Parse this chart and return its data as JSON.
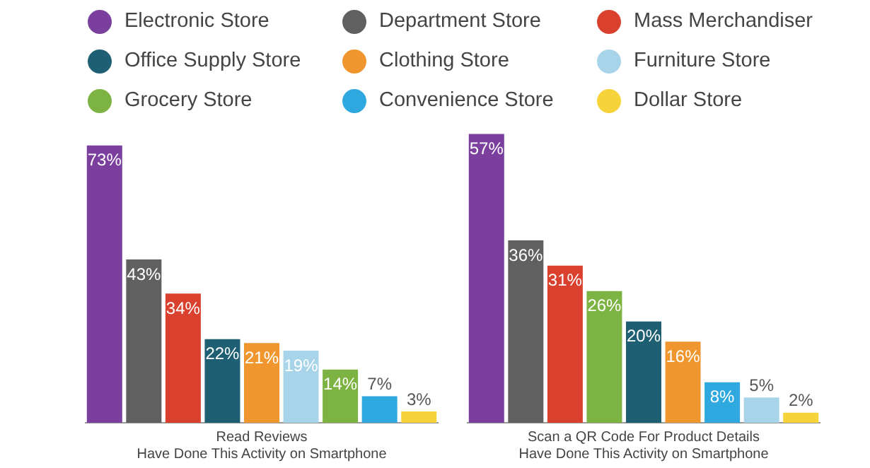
{
  "chart_data": [
    {
      "type": "bar",
      "xlabel": "Read Reviews\nHave Done This Activity on Smartphone",
      "categories": [
        null
      ],
      "legend": "top",
      "grid": false,
      "series": [
        {
          "name": "Electronic Store",
          "color": "#7b3f9e",
          "values": [
            73
          ],
          "value_labels": [
            "73%"
          ]
        },
        {
          "name": "Department Store",
          "color": "#606060",
          "values": [
            43
          ],
          "value_labels": [
            "43%"
          ]
        },
        {
          "name": "Mass Merchandiser",
          "color": "#d9412e",
          "values": [
            34
          ],
          "value_labels": [
            "34%"
          ]
        },
        {
          "name": "Office Supply Store",
          "color": "#1f5f73",
          "values": [
            22
          ],
          "value_labels": [
            "22%"
          ]
        },
        {
          "name": "Clothing Store",
          "color": "#f0962e",
          "values": [
            21
          ],
          "value_labels": [
            "21%"
          ]
        },
        {
          "name": "Furniture Store",
          "color": "#a8d4ea",
          "values": [
            19
          ],
          "value_labels": [
            "19%"
          ]
        },
        {
          "name": "Grocery Store",
          "color": "#7cb342",
          "values": [
            14
          ],
          "value_labels": [
            "14%"
          ]
        },
        {
          "name": "Convenience Store",
          "color": "#2fa8e0",
          "values": [
            7
          ],
          "value_labels": [
            "7%"
          ]
        },
        {
          "name": "Dollar Store",
          "color": "#f7d33a",
          "values": [
            3
          ],
          "value_labels": [
            "3%"
          ]
        }
      ]
    },
    {
      "type": "bar",
      "xlabel": "Scan a QR Code For Product Details\nHave Done This Activity on Smartphone",
      "categories": [
        null
      ],
      "legend": "top",
      "grid": false,
      "series": [
        {
          "name": "Electronic Store",
          "color": "#7b3f9e",
          "values": [
            57
          ],
          "value_labels": [
            "57%"
          ]
        },
        {
          "name": "Department Store",
          "color": "#606060",
          "values": [
            36
          ],
          "value_labels": [
            "36%"
          ]
        },
        {
          "name": "Mass Merchandiser",
          "color": "#d9412e",
          "values": [
            31
          ],
          "value_labels": [
            "31%"
          ]
        },
        {
          "name": "Grocery Store",
          "color": "#7cb342",
          "values": [
            26
          ],
          "value_labels": [
            "26%"
          ]
        },
        {
          "name": "Office Supply Store",
          "color": "#1f5f73",
          "values": [
            20
          ],
          "value_labels": [
            "20%"
          ]
        },
        {
          "name": "Clothing Store",
          "color": "#f0962e",
          "values": [
            16
          ],
          "value_labels": [
            "16%"
          ]
        },
        {
          "name": "Convenience Store",
          "color": "#2fa8e0",
          "values": [
            8
          ],
          "value_labels": [
            "8%"
          ]
        },
        {
          "name": "Furniture Store",
          "color": "#a8d4ea",
          "values": [
            5
          ],
          "value_labels": [
            "5%"
          ]
        },
        {
          "name": "Dollar Store",
          "color": "#f7d33a",
          "values": [
            2
          ],
          "value_labels": [
            "2%"
          ]
        }
      ]
    }
  ]
}
